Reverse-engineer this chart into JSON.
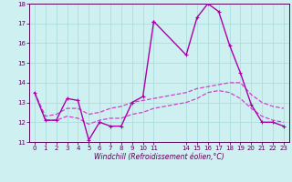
{
  "xlabel": "Windchill (Refroidissement éolien,°C)",
  "background_color": "#cff0f0",
  "grid_color": "#aadddd",
  "line_color": "#aa00aa",
  "xlim": [
    -0.5,
    23.5
  ],
  "ylim": [
    11,
    18
  ],
  "yticks": [
    11,
    12,
    13,
    14,
    15,
    16,
    17,
    18
  ],
  "xticks": [
    0,
    1,
    2,
    3,
    4,
    5,
    6,
    7,
    8,
    9,
    10,
    11,
    14,
    15,
    16,
    17,
    18,
    19,
    20,
    21,
    22,
    23
  ],
  "series": [
    {
      "x": [
        0,
        1,
        2,
        3,
        4,
        5,
        6,
        7,
        8,
        9,
        10,
        11
      ],
      "y": [
        13.5,
        12.1,
        12.1,
        13.2,
        13.1,
        11.1,
        12.0,
        11.8,
        11.8,
        13.0,
        13.3,
        17.1
      ],
      "color": "#aa00aa",
      "linewidth": 1.0,
      "markersize": 3,
      "dashed": false
    },
    {
      "x": [
        11,
        14,
        15,
        16,
        17,
        18,
        19,
        20,
        21,
        22,
        23
      ],
      "y": [
        17.1,
        15.4,
        17.3,
        18.0,
        17.6,
        15.9,
        14.5,
        12.9,
        12.0,
        12.0,
        11.8
      ],
      "color": "#aa00aa",
      "linewidth": 1.0,
      "markersize": 3,
      "dashed": false
    },
    {
      "x": [
        0,
        1,
        2,
        3,
        4,
        5,
        6,
        7,
        8,
        9,
        10,
        11,
        14,
        15,
        16,
        17,
        18,
        19,
        20,
        21,
        22,
        23
      ],
      "y": [
        13.5,
        12.3,
        12.4,
        12.7,
        12.7,
        12.4,
        12.5,
        12.7,
        12.8,
        13.0,
        13.1,
        13.2,
        13.5,
        13.7,
        13.8,
        13.9,
        14.0,
        14.0,
        13.4,
        13.0,
        12.8,
        12.7
      ],
      "color": "#cc44cc",
      "linewidth": 0.9,
      "markersize": 0,
      "dashed": true
    },
    {
      "x": [
        0,
        1,
        2,
        3,
        4,
        5,
        6,
        7,
        8,
        9,
        10,
        11,
        14,
        15,
        16,
        17,
        18,
        19,
        20,
        21,
        22,
        23
      ],
      "y": [
        13.5,
        12.1,
        12.1,
        12.3,
        12.2,
        11.9,
        12.1,
        12.2,
        12.2,
        12.4,
        12.5,
        12.7,
        13.0,
        13.2,
        13.5,
        13.6,
        13.5,
        13.2,
        12.7,
        12.3,
        12.1,
        12.0
      ],
      "color": "#cc44cc",
      "linewidth": 0.9,
      "markersize": 0,
      "dashed": true
    }
  ]
}
